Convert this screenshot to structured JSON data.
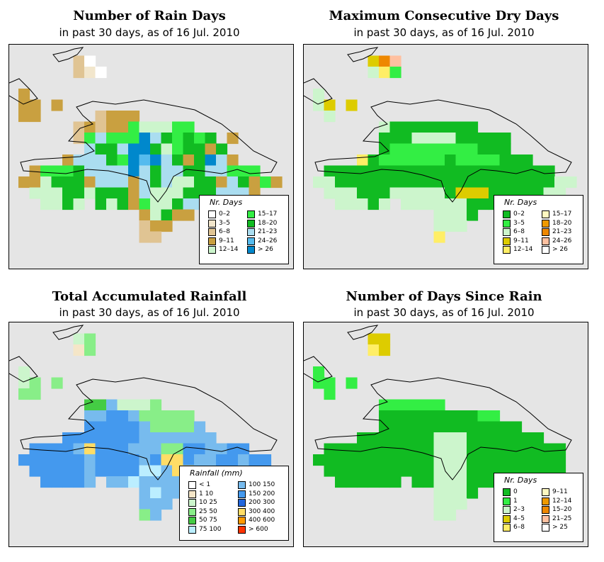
{
  "panels": [
    {
      "id": "rain-days",
      "title": "Number of Rain Days",
      "subtitle": "in past 30 days, as of  16 Jul. 2010",
      "legend": {
        "title": "Nr. Days",
        "items": [
          {
            "label": "0–2",
            "color": "#ffffff"
          },
          {
            "label": "3–5",
            "color": "#f2e6cc"
          },
          {
            "label": "6–8",
            "color": "#e0c493"
          },
          {
            "label": "9–11",
            "color": "#c9a040"
          },
          {
            "label": "12–14",
            "color": "#ccf5cc"
          },
          {
            "label": "15–17",
            "color": "#33ee44"
          },
          {
            "label": "18–20",
            "color": "#11bb22"
          },
          {
            "label": "21–23",
            "color": "#aaddf0"
          },
          {
            "label": "24–26",
            "color": "#55bbee"
          },
          {
            "label": "> 26",
            "color": "#0088cc"
          }
        ]
      }
    },
    {
      "id": "max-dry-days",
      "title": "Maximum Consecutive Dry Days",
      "subtitle": "in past 30 days, as of  16 Jul. 2010",
      "legend": {
        "title": "Nr. Days",
        "items": [
          {
            "label": "0–2",
            "color": "#11bb22"
          },
          {
            "label": "3–5",
            "color": "#33ee44"
          },
          {
            "label": "6–8",
            "color": "#ccf5cc"
          },
          {
            "label": "9–11",
            "color": "#ddcc00"
          },
          {
            "label": "12–14",
            "color": "#ffee66"
          },
          {
            "label": "15–17",
            "color": "#fff8c0"
          },
          {
            "label": "18–20",
            "color": "#ee9900"
          },
          {
            "label": "21–23",
            "color": "#ee8800"
          },
          {
            "label": "24–26",
            "color": "#ffc0a0"
          },
          {
            "label": "> 26",
            "color": "#ffffff"
          }
        ]
      }
    },
    {
      "id": "total-rainfall",
      "title": "Total Accumulated Rainfall",
      "subtitle": "in past 30 days, as of  16 Jul. 2010",
      "legend": {
        "title": "Rainfall (mm)",
        "items": [
          {
            "label": "< 1",
            "color": "#ffffff"
          },
          {
            "label": "1    10",
            "color": "#f5e6c8"
          },
          {
            "label": "10    25",
            "color": "#ccf5cc"
          },
          {
            "label": "25    50",
            "color": "#88ee88"
          },
          {
            "label": "50    75",
            "color": "#44cc44"
          },
          {
            "label": "75   100",
            "color": "#bbeeff"
          },
          {
            "label": "100   150",
            "color": "#77bbee"
          },
          {
            "label": "150  200",
            "color": "#4499ee"
          },
          {
            "label": "200  300",
            "color": "#2266dd"
          },
          {
            "label": "300  400",
            "color": "#ffdd66"
          },
          {
            "label": "400  600",
            "color": "#ff9900"
          },
          {
            "label": "> 600",
            "color": "#ff3300"
          }
        ]
      }
    },
    {
      "id": "days-since-rain",
      "title": "Number of Days Since Rain",
      "subtitle": "in past 30 days, as of  16 Jul. 2010",
      "legend": {
        "title": "Nr. Days",
        "items": [
          {
            "label": "0",
            "color": "#11bb22"
          },
          {
            "label": "1",
            "color": "#33ee44"
          },
          {
            "label": "2–3",
            "color": "#ccf5cc"
          },
          {
            "label": "4–5",
            "color": "#ddcc00"
          },
          {
            "label": "6–8",
            "color": "#ffee66"
          },
          {
            "label": "9–11",
            "color": "#fff8c0"
          },
          {
            "label": "12–14",
            "color": "#ee9900"
          },
          {
            "label": "15–20",
            "color": "#ee8800"
          },
          {
            "label": "21–25",
            "color": "#ffc0a0"
          },
          {
            "label": "> 25",
            "color": "#ffffff"
          }
        ]
      }
    }
  ],
  "grids": {
    "rain-days": [
      "........................",
      ".....cA.................",
      ".....cba................",
      "........................",
      "d.......................",
      "dd.d....................",
      "dd.....cddd.............",
      ".....cdcddEeeeEE........",
      ".....cEHEEEJHFEFEF.d....",
      "......hFFHJJFeEFFdF.....",
      "....dhHHFEJIJHFdFJHd....",
      ".dEEEFhHHHJHFHHFFHHEEE..",
      "ddeFFFdHHHdHFHeeFFdHFdEd",
      ".eeeFFeFFFdHeeeFFFHHHd..",
      "..eeFe.FeFdEeeFHHHeeHd..",
      "...........deFdd........",
      "...........cdd..........",
      "...........cc..........."
    ],
    "max-dry-days": [
      "........................",
      ".....dCI................",
      ".....eDE................",
      "........................",
      "e.......................",
      "ed.d....................",
      ".c.....................",
      "......eFFFFFFFF.........",
      "......FFFeeeeFFFFF......",
      "......FEEEEEEEEFFF......",
      "....fFEEEEEEFEEEEFFF....",
      ".FFFFFFFFFFFFFFFFFFFFF..",
      "ccFFFFFFFFFFFFFFFFFFFFcc",
      ".cccFFFeeeeeFdddFFFFFcc.",
      "..cccFc.ccccccFFFFccFcc.",
      "...........cccF.........",
      "...........ccc..........",
      "...........f..........."
    ],
    "total-rainfall": [
      "........................",
      ".....cd.................",
      ".....bd.................",
      "........................",
      "c.......................",
      "cd.d....................",
      "Gd.....................",
      "......ggHcccG...........",
      "......HHIIHGGGGG........",
      "......IIIIIHGGGGH.......",
      "....IIIIIIIHHHHHHH......",
      ".IIIIHJIIIHHHGGIIHHII...",
      "IIIIIIHIIIIHIJJIHHIIHII.",
      ".IIIIIHIIIIeeHJJHHIIHII.",
      "..IIIIH.HHeHHHHIIIHIHI..",
      "...........HeHH.........",
      "...........HHH..........",
      "...........GH..........."
    ],
    "days-since-rain": [
      "........................",
      ".....df.................",
      ".....ed.................",
      "........................",
      "b.......................",
      "bb.b....................",
      ".b......................",
      "......bbbbbb............",
      "......BBBBBBBBBbb.......",
      "......BBBBBBBBBBBBB.....",
      "....BBBBBBBcccBBBBBBB...",
      ".BBBBBBBBBBcccBBBBBBBBB.",
      "BBBBBBBBBBBcccBBBBBBBBB.",
      ".BBBBBBBBBBcccBBBBBBBBB.",
      "..BBBBBB.BBcccBBBBBBBB..",
      "...........cccB.........",
      "...........ccc..........",
      "...........cc..........."
    ]
  },
  "palette": {
    "rain-days": {
      "A": "#ffffff",
      "b": "#f2e6cc",
      "c": "#e0c493",
      "d": "#c9a040",
      "e": "#ccf5cc",
      "E": "#33ee44",
      "F": "#11bb22",
      "H": "#aaddf0",
      "I": "#55bbee",
      "J": "#0088cc",
      "h": "#aaddf0",
      "a": "#ffffff"
    },
    "max-dry-days": {
      "F": "#11bb22",
      "E": "#33ee44",
      "e": "#ccf5cc",
      "d": "#ddcc00",
      "f": "#ffee66",
      "c": "#ccf5cc",
      "C": "#ee8800",
      "D": "#ffee66",
      "I": "#ffc0a0"
    },
    "total-rainfall": {
      "b": "#f5e6c8",
      "c": "#ccf5cc",
      "d": "#88ee88",
      "g": "#44cc44",
      "G": "#88ee88",
      "H": "#77bbee",
      "I": "#4499ee",
      "J": "#ffdd66",
      "e": "#bbeeff"
    },
    "days-since-rain": {
      "B": "#11bb22",
      "b": "#33ee44",
      "c": "#ccf5cc",
      "d": "#ddcc00",
      "e": "#ffee66",
      "f": "#ddcc00"
    }
  }
}
